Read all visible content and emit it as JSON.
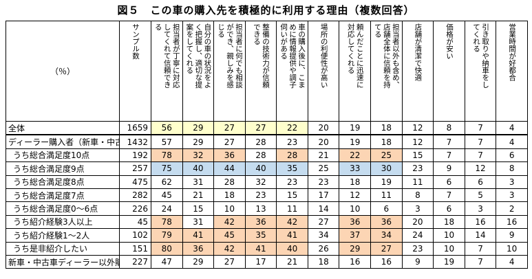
{
  "title": "図５　この車の購入先を積極的に利用する理由（複数回答）",
  "unit_label": "（％）",
  "columns": [
    "サンプル数",
    "担当者が丁寧に対応してくれて信頼できる",
    "自分の車の状況をよく把握し、適切な提案をしてくれる",
    "担当者に何でも相談ができ、親しみを感じる",
    "整備の技術力が信頼できる",
    "車の購入後に、こまめに情報提供や調子伺いがある",
    "場所の利便性が高い",
    "頼んだことに迅速に対応してくれる",
    "担当者以外も含め、店舗全体に信頼を持てる",
    "店舗が清潔で快適",
    "価格が安い",
    "引き取りや納車をしてくれる",
    "営業時間が好都合"
  ],
  "rows": [
    {
      "label": "全体",
      "n": "1659",
      "values": [
        "56",
        "29",
        "27",
        "27",
        "22",
        "20",
        "19",
        "18",
        "12",
        "8",
        "7",
        "4"
      ],
      "hl": [
        "y",
        "y",
        "y",
        "y",
        "y",
        "",
        "",
        "",
        "",
        "",
        "",
        ""
      ],
      "sub": false
    },
    {
      "label": "ディーラー購入者（新車・中古車）",
      "n": "1432",
      "values": [
        "57",
        "29",
        "27",
        "28",
        "23",
        "20",
        "19",
        "18",
        "12",
        "7",
        "7",
        "4"
      ],
      "hl": [
        "",
        "",
        "",
        "",
        "",
        "",
        "",
        "",
        "",
        "",
        "",
        ""
      ],
      "sub": false
    },
    {
      "label": "うち総合満足度10点",
      "n": "192",
      "values": [
        "78",
        "32",
        "36",
        "28",
        "28",
        "21",
        "22",
        "25",
        "15",
        "7",
        "7",
        "6"
      ],
      "hl": [
        "o",
        "o",
        "o",
        "",
        "o",
        "",
        "o",
        "o",
        "",
        "",
        "",
        ""
      ],
      "sub": true
    },
    {
      "label": "うち総合満足度9点",
      "n": "257",
      "values": [
        "75",
        "40",
        "44",
        "40",
        "35",
        "25",
        "33",
        "30",
        "23",
        "9",
        "12",
        "8"
      ],
      "hl": [
        "b",
        "b",
        "b",
        "b",
        "b",
        "",
        "b",
        "b",
        "",
        "",
        "",
        ""
      ],
      "sub": true
    },
    {
      "label": "うち総合満足度8点",
      "n": "475",
      "values": [
        "62",
        "31",
        "28",
        "32",
        "23",
        "23",
        "18",
        "19",
        "11",
        "6",
        "6",
        "3"
      ],
      "hl": [
        "",
        "",
        "",
        "",
        "",
        "",
        "",
        "",
        "",
        "",
        "",
        ""
      ],
      "sub": true
    },
    {
      "label": "うち総合満足度7点",
      "n": "282",
      "values": [
        "45",
        "21",
        "18",
        "23",
        "15",
        "17",
        "12",
        "11",
        "8",
        "7",
        "5",
        "3"
      ],
      "hl": [
        "",
        "",
        "",
        "",
        "",
        "",
        "",
        "",
        "",
        "",
        "",
        ""
      ],
      "sub": true
    },
    {
      "label": "うち総合満足度0～6点",
      "n": "226",
      "values": [
        "24",
        "15",
        "10",
        "13",
        "11",
        "14",
        "10",
        "6",
        "3",
        "6",
        "3",
        "2"
      ],
      "hl": [
        "",
        "",
        "",
        "",
        "",
        "",
        "",
        "",
        "",
        "",
        "",
        ""
      ],
      "sub": true
    },
    {
      "label": "うち紹介経験3人以上",
      "n": "45",
      "values": [
        "78",
        "31",
        "42",
        "36",
        "42",
        "27",
        "36",
        "36",
        "20",
        "18",
        "16",
        "16"
      ],
      "hl": [
        "o",
        "",
        "o",
        "o",
        "o",
        "",
        "o",
        "o",
        "",
        "",
        "",
        ""
      ],
      "sub": true
    },
    {
      "label": "うち紹介経験1～2人",
      "n": "102",
      "values": [
        "79",
        "41",
        "45",
        "35",
        "41",
        "34",
        "37",
        "34",
        "24",
        "10",
        "14",
        "9"
      ],
      "hl": [
        "o",
        "o",
        "o",
        "o",
        "o",
        "",
        "o",
        "o",
        "",
        "",
        "",
        ""
      ],
      "sub": true
    },
    {
      "label": "うち是非紹介したい",
      "n": "151",
      "values": [
        "80",
        "36",
        "42",
        "41",
        "40",
        "26",
        "29",
        "27",
        "23",
        "10",
        "7",
        "10"
      ],
      "hl": [
        "o",
        "o",
        "o",
        "o",
        "o",
        "",
        "o",
        "o",
        "",
        "",
        "",
        ""
      ],
      "sub": true
    },
    {
      "label": "新車・中古車ディーラー以外購入者",
      "n": "227",
      "values": [
        "47",
        "29",
        "27",
        "17",
        "21",
        "18",
        "16",
        "16",
        "9",
        "19",
        "7",
        "4"
      ],
      "hl": [
        "",
        "",
        "",
        "",
        "",
        "",
        "",
        "",
        "",
        "",
        "",
        ""
      ],
      "sub": false
    }
  ],
  "colors": {
    "orange": "#fcd5b4",
    "blue": "#c5dcef",
    "yellow": "#ffffcc"
  },
  "chart_data": {
    "type": "table",
    "title": "図５　この車の購入先を積極的に利用する理由（複数回答）",
    "unit": "（％）"
  }
}
